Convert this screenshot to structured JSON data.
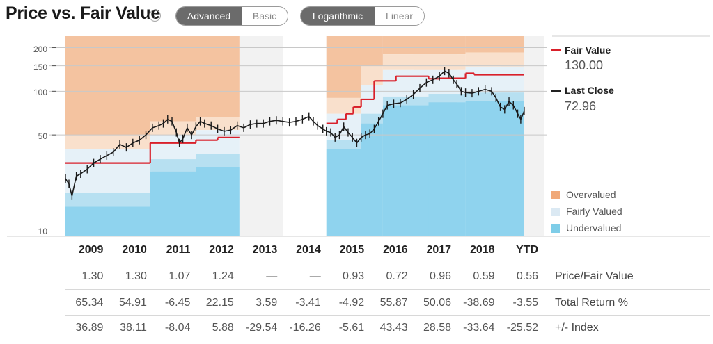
{
  "header": {
    "title": "Price vs. Fair Value",
    "info_icon": "info-icon",
    "view_toggle": {
      "options": [
        "Advanced",
        "Basic"
      ],
      "selected": "Advanced"
    },
    "scale_toggle": {
      "options": [
        "Logarithmic",
        "Linear"
      ],
      "selected": "Logarithmic"
    }
  },
  "legend": {
    "fair_value": {
      "label": "Fair Value",
      "value": "130.00",
      "color": "#d9202a"
    },
    "last_close": {
      "label": "Last Close",
      "value": "72.96",
      "color": "#222222"
    },
    "valuation": [
      {
        "label": "Overvalued",
        "color": "#f0a878"
      },
      {
        "label": "Fairly Valued",
        "color": "#dbe9f3"
      },
      {
        "label": "Undervalued",
        "color": "#7ecde8"
      }
    ]
  },
  "chart_data": {
    "type": "line",
    "scale": "log",
    "y_ticks": [
      "200",
      "150",
      "100",
      "50",
      "10"
    ],
    "y_tick_values": [
      200,
      150,
      100,
      50,
      10
    ],
    "ylim": [
      10,
      240
    ],
    "categories": [
      "2009",
      "2010",
      "2011",
      "2012",
      "2013",
      "2014",
      "2015",
      "2016",
      "2017",
      "2018",
      "YTD"
    ],
    "colors": {
      "overvalued": "#f4c3a0",
      "overvalued_light": "#f9e0cc",
      "fairly_valued": "#e6f1f8",
      "fairly_light": "#d2e8f4",
      "undervalued_light": "#b7e0f1",
      "undervalued": "#8fd3ee",
      "fair_value_line": "#d9202a",
      "price_line": "#1a1a1a",
      "shade_column": "#f2f2f2"
    },
    "fair_value_steps": [
      {
        "from": 2009.0,
        "to": 2010.95,
        "value": 32
      },
      {
        "from": 2010.95,
        "to": 2012.0,
        "value": 44
      },
      {
        "from": 2012.0,
        "to": 2012.5,
        "value": 46
      },
      {
        "from": 2012.5,
        "to": 2013.0,
        "value": 48
      },
      {
        "from": 2015.0,
        "to": 2015.25,
        "value": 60
      },
      {
        "from": 2015.25,
        "to": 2015.45,
        "value": 64
      },
      {
        "from": 2015.45,
        "to": 2015.62,
        "value": 70
      },
      {
        "from": 2015.62,
        "to": 2015.8,
        "value": 78
      },
      {
        "from": 2015.8,
        "to": 2016.1,
        "value": 88
      },
      {
        "from": 2016.1,
        "to": 2016.6,
        "value": 118
      },
      {
        "from": 2016.6,
        "to": 2017.35,
        "value": 127
      },
      {
        "from": 2017.35,
        "to": 2017.6,
        "value": 122
      },
      {
        "from": 2017.6,
        "to": 2018.2,
        "value": 123
      },
      {
        "from": 2018.2,
        "to": 2018.4,
        "value": 133
      },
      {
        "from": 2018.4,
        "to": 2019.55,
        "value": 130
      }
    ],
    "price": [
      [
        2009.0,
        25
      ],
      [
        2009.08,
        23
      ],
      [
        2009.15,
        19
      ],
      [
        2009.25,
        26
      ],
      [
        2009.35,
        27
      ],
      [
        2009.5,
        29
      ],
      [
        2009.65,
        32
      ],
      [
        2009.8,
        34
      ],
      [
        2009.95,
        36
      ],
      [
        2010.1,
        38
      ],
      [
        2010.25,
        43
      ],
      [
        2010.4,
        41
      ],
      [
        2010.55,
        44
      ],
      [
        2010.7,
        46
      ],
      [
        2010.85,
        50
      ],
      [
        2011.0,
        56
      ],
      [
        2011.15,
        58
      ],
      [
        2011.25,
        60
      ],
      [
        2011.35,
        64
      ],
      [
        2011.45,
        62
      ],
      [
        2011.55,
        52
      ],
      [
        2011.62,
        44
      ],
      [
        2011.7,
        47
      ],
      [
        2011.8,
        56
      ],
      [
        2011.9,
        50
      ],
      [
        2012.0,
        57
      ],
      [
        2012.1,
        62
      ],
      [
        2012.2,
        60
      ],
      [
        2012.35,
        58
      ],
      [
        2012.5,
        55
      ],
      [
        2012.65,
        53
      ],
      [
        2012.8,
        54
      ],
      [
        2012.95,
        58
      ],
      [
        2013.1,
        56
      ],
      [
        2013.25,
        59
      ],
      [
        2013.4,
        60
      ],
      [
        2013.55,
        60
      ],
      [
        2013.7,
        62
      ],
      [
        2013.85,
        63
      ],
      [
        2014.0,
        62
      ],
      [
        2014.15,
        61
      ],
      [
        2014.3,
        62
      ],
      [
        2014.45,
        64
      ],
      [
        2014.6,
        67
      ],
      [
        2014.7,
        62
      ],
      [
        2014.8,
        58
      ],
      [
        2014.92,
        55
      ],
      [
        2015.0,
        53
      ],
      [
        2015.1,
        52
      ],
      [
        2015.2,
        48
      ],
      [
        2015.3,
        50
      ],
      [
        2015.4,
        57
      ],
      [
        2015.5,
        52
      ],
      [
        2015.6,
        48
      ],
      [
        2015.7,
        44
      ],
      [
        2015.8,
        48
      ],
      [
        2015.9,
        50
      ],
      [
        2016.0,
        51
      ],
      [
        2016.1,
        55
      ],
      [
        2016.2,
        62
      ],
      [
        2016.3,
        70
      ],
      [
        2016.4,
        80
      ],
      [
        2016.55,
        82
      ],
      [
        2016.7,
        83
      ],
      [
        2016.85,
        88
      ],
      [
        2017.0,
        95
      ],
      [
        2017.15,
        105
      ],
      [
        2017.3,
        115
      ],
      [
        2017.45,
        120
      ],
      [
        2017.6,
        127
      ],
      [
        2017.72,
        138
      ],
      [
        2017.82,
        133
      ],
      [
        2017.92,
        120
      ],
      [
        2018.0,
        112
      ],
      [
        2018.1,
        100
      ],
      [
        2018.2,
        98
      ],
      [
        2018.35,
        97
      ],
      [
        2018.5,
        100
      ],
      [
        2018.65,
        103
      ],
      [
        2018.8,
        100
      ],
      [
        2018.9,
        90
      ],
      [
        2019.0,
        78
      ],
      [
        2019.1,
        75
      ],
      [
        2019.2,
        85
      ],
      [
        2019.3,
        80
      ],
      [
        2019.4,
        70
      ],
      [
        2019.47,
        64
      ],
      [
        2019.55,
        73
      ]
    ],
    "valuation_bands": [
      {
        "from": 2009.0,
        "to": 2010.95,
        "under": 16,
        "fair_lo": 20,
        "fair_hi": 40,
        "over": 50
      },
      {
        "from": 2010.95,
        "to": 2012.0,
        "under": 28,
        "fair_lo": 34,
        "fair_hi": 50,
        "over": 62
      },
      {
        "from": 2012.0,
        "to": 2013.0,
        "under": 30,
        "fair_lo": 37,
        "fair_hi": 54,
        "over": 66
      },
      {
        "from": 2015.0,
        "to": 2015.8,
        "under": 40,
        "fair_lo": 46,
        "fair_hi": 70,
        "over": 90
      },
      {
        "from": 2015.8,
        "to": 2016.3,
        "under": 60,
        "fair_lo": 70,
        "fair_hi": 110,
        "over": 150
      },
      {
        "from": 2016.3,
        "to": 2017.35,
        "under": 80,
        "fair_lo": 92,
        "fair_hi": 140,
        "over": 180
      },
      {
        "from": 2017.35,
        "to": 2018.2,
        "under": 84,
        "fair_lo": 96,
        "fair_hi": 140,
        "over": 180
      },
      {
        "from": 2018.2,
        "to": 2019.55,
        "under": 86,
        "fair_lo": 98,
        "fair_hi": 148,
        "over": 185
      }
    ]
  },
  "table": {
    "years": [
      "2009",
      "2010",
      "2011",
      "2012",
      "2013",
      "2014",
      "2015",
      "2016",
      "2017",
      "2018",
      "YTD"
    ],
    "rows": [
      {
        "label": "Price/Fair Value",
        "values": [
          "1.30",
          "1.30",
          "1.07",
          "1.24",
          "—",
          "—",
          "0.93",
          "0.72",
          "0.96",
          "0.59",
          "0.56"
        ]
      },
      {
        "label": "Total Return %",
        "values": [
          "65.34",
          "54.91",
          "-6.45",
          "22.15",
          "3.59",
          "-3.41",
          "-4.92",
          "55.87",
          "50.06",
          "-38.69",
          "-3.55"
        ]
      },
      {
        "label": "+/- Index",
        "values": [
          "36.89",
          "38.11",
          "-8.04",
          "5.88",
          "-29.54",
          "-16.26",
          "-5.61",
          "43.43",
          "28.58",
          "-33.64",
          "-25.52"
        ]
      }
    ]
  }
}
